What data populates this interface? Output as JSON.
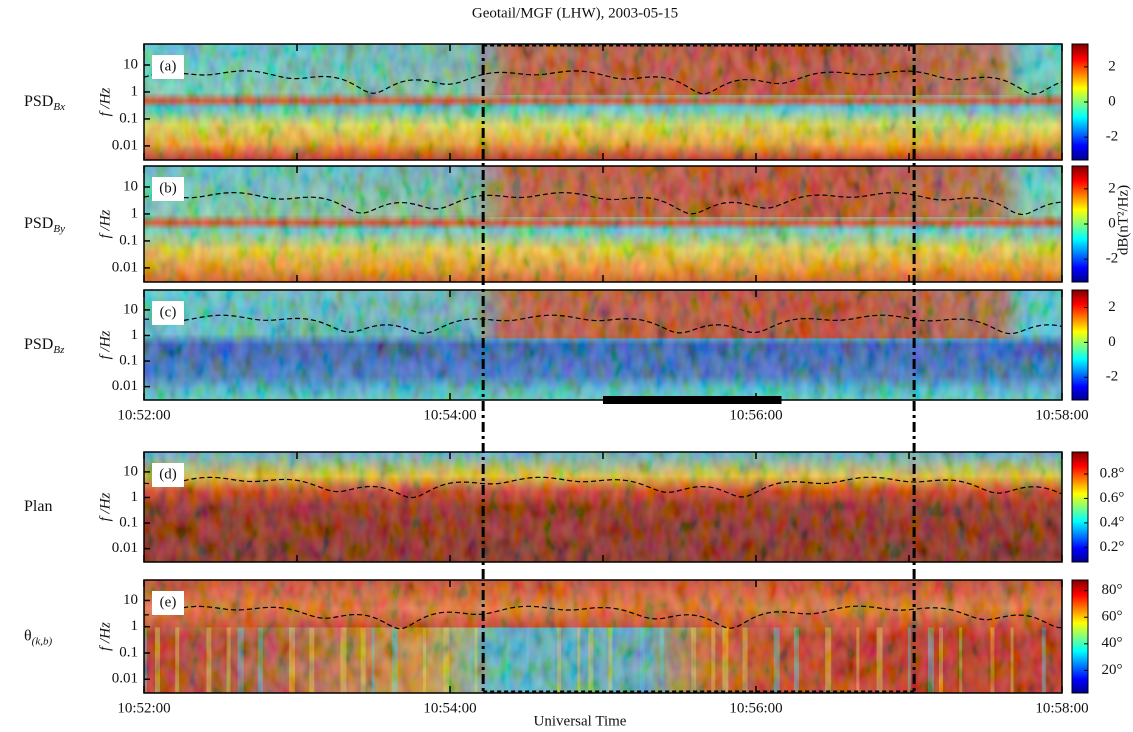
{
  "title": "Geotail/MGF (LHW), 2003-05-15",
  "xlabel": "Universal Time",
  "colorbar_label": "dB(nT²/Hz)",
  "highlight": [
    "10:54:13",
    "10:57:02"
  ],
  "bar": [
    "10:55:00",
    "10:56:10"
  ],
  "chart_data": [
    {
      "type": "heatmap",
      "panel_label": "(a)",
      "row_label": "PSD",
      "row_label_sub": "Bx",
      "ylabel": "f /Hz",
      "xlim": [
        "10:52:00",
        "10:58:00"
      ],
      "xticks": [
        "10:52:00",
        "10:53:00",
        "10:54:00",
        "10:55:00",
        "10:56:00",
        "10:57:00",
        "10:58:00"
      ],
      "show_xtick_labels": false,
      "ylim": [
        0.003,
        60
      ],
      "yticks": [
        0.01,
        0.1,
        1,
        10
      ],
      "log_y": true,
      "clim": [
        -3.3,
        3.3
      ],
      "cticks": [
        -2,
        0,
        2
      ],
      "colormap": "jet"
    },
    {
      "type": "heatmap",
      "panel_label": "(b)",
      "row_label": "PSD",
      "row_label_sub": "By",
      "ylabel": "f /Hz",
      "xlim": [
        "10:52:00",
        "10:58:00"
      ],
      "xticks": [
        "10:52:00",
        "10:53:00",
        "10:54:00",
        "10:55:00",
        "10:56:00",
        "10:57:00",
        "10:58:00"
      ],
      "show_xtick_labels": false,
      "ylim": [
        0.003,
        60
      ],
      "yticks": [
        0.01,
        0.1,
        1,
        10
      ],
      "log_y": true,
      "clim": [
        -3.3,
        3.3
      ],
      "cticks": [
        -2,
        0,
        2
      ],
      "colormap": "jet"
    },
    {
      "type": "heatmap",
      "panel_label": "(c)",
      "row_label": "PSD",
      "row_label_sub": "Bz",
      "ylabel": "f /Hz",
      "xlim": [
        "10:52:00",
        "10:58:00"
      ],
      "xticks": [
        "10:52:00",
        "10:54:00",
        "10:56:00",
        "10:58:00"
      ],
      "show_xtick_labels": true,
      "ylim": [
        0.003,
        60
      ],
      "yticks": [
        0.01,
        0.1,
        1,
        10
      ],
      "log_y": true,
      "clim": [
        -3.3,
        3.0
      ],
      "cticks": [
        -2,
        0,
        2
      ],
      "colormap": "jet"
    },
    {
      "type": "heatmap",
      "panel_label": "(d)",
      "row_label": "Plan",
      "ylabel": "f /Hz",
      "xlim": [
        "10:52:00",
        "10:58:00"
      ],
      "xticks": [
        "10:52:00",
        "10:53:00",
        "10:54:00",
        "10:55:00",
        "10:56:00",
        "10:57:00",
        "10:58:00"
      ],
      "show_xtick_labels": false,
      "ylim": [
        0.003,
        60
      ],
      "yticks": [
        0.01,
        0.1,
        1,
        10
      ],
      "log_y": true,
      "clim": [
        0.08,
        0.98
      ],
      "cticks": [
        {
          "value": 0.2,
          "label": "0.2°"
        },
        {
          "value": 0.4,
          "label": "0.4°"
        },
        {
          "value": 0.6,
          "label": "0.6°"
        },
        {
          "value": 0.8,
          "label": "0.8°"
        }
      ],
      "colormap": "jet"
    },
    {
      "type": "heatmap",
      "panel_label": "(e)",
      "row_label": "θ",
      "row_label_sub": "(k,b)",
      "ylabel": "f /Hz",
      "xlim": [
        "10:52:00",
        "10:58:00"
      ],
      "xticks": [
        "10:52:00",
        "10:54:00",
        "10:56:00",
        "10:58:00"
      ],
      "show_xtick_labels": true,
      "ylim": [
        0.003,
        60
      ],
      "yticks": [
        0.01,
        0.1,
        1,
        10
      ],
      "log_y": true,
      "clim": [
        3,
        88
      ],
      "cticks": [
        {
          "value": 20,
          "label": "20°"
        },
        {
          "value": 40,
          "label": "40°"
        },
        {
          "value": 60,
          "label": "60°"
        },
        {
          "value": 80,
          "label": "80°"
        }
      ],
      "colormap": "jet"
    }
  ]
}
